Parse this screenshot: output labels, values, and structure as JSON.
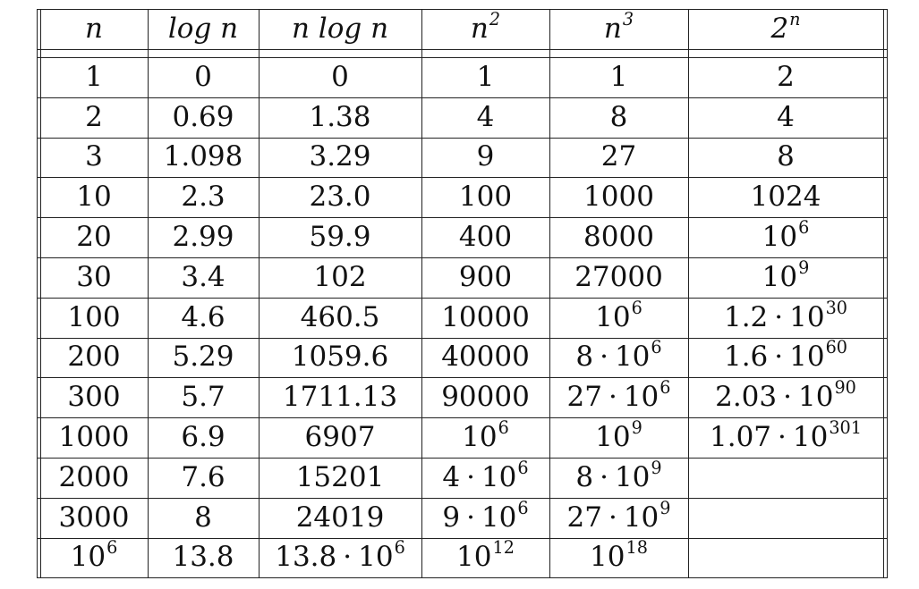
{
  "table": {
    "headers": [
      {
        "base": "n",
        "sup": ""
      },
      {
        "base": "log n",
        "sup": ""
      },
      {
        "base": "n log n",
        "sup": ""
      },
      {
        "base": "n",
        "sup": "2"
      },
      {
        "base": "n",
        "sup": "3"
      },
      {
        "base": "2",
        "sup": "n"
      }
    ],
    "rows": [
      [
        {
          "base": "1"
        },
        {
          "base": "0"
        },
        {
          "base": "0"
        },
        {
          "base": "1"
        },
        {
          "base": "1"
        },
        {
          "base": "2"
        }
      ],
      [
        {
          "base": "2"
        },
        {
          "base": "0.69"
        },
        {
          "base": "1.38"
        },
        {
          "base": "4"
        },
        {
          "base": "8"
        },
        {
          "base": "4"
        }
      ],
      [
        {
          "base": "3"
        },
        {
          "base": "1.098"
        },
        {
          "base": "3.29"
        },
        {
          "base": "9"
        },
        {
          "base": "27"
        },
        {
          "base": "8"
        }
      ],
      [
        {
          "base": "10"
        },
        {
          "base": "2.3"
        },
        {
          "base": "23.0"
        },
        {
          "base": "100"
        },
        {
          "base": "1000"
        },
        {
          "base": "1024"
        }
      ],
      [
        {
          "base": "20"
        },
        {
          "base": "2.99"
        },
        {
          "base": "59.9"
        },
        {
          "base": "400"
        },
        {
          "base": "8000"
        },
        {
          "base": "10",
          "sup": "6"
        }
      ],
      [
        {
          "base": "30"
        },
        {
          "base": "3.4"
        },
        {
          "base": "102"
        },
        {
          "base": "900"
        },
        {
          "base": "27000"
        },
        {
          "base": "10",
          "sup": "9"
        }
      ],
      [
        {
          "base": "100"
        },
        {
          "base": "4.6"
        },
        {
          "base": "460.5"
        },
        {
          "base": "10000"
        },
        {
          "base": "10",
          "sup": "6"
        },
        {
          "coef": "1.2",
          "base": "10",
          "sup": "30"
        }
      ],
      [
        {
          "base": "200"
        },
        {
          "base": "5.29"
        },
        {
          "base": "1059.6"
        },
        {
          "base": "40000"
        },
        {
          "coef": "8",
          "base": "10",
          "sup": "6"
        },
        {
          "coef": "1.6",
          "base": "10",
          "sup": "60"
        }
      ],
      [
        {
          "base": "300"
        },
        {
          "base": "5.7"
        },
        {
          "base": "1711.13"
        },
        {
          "base": "90000"
        },
        {
          "coef": "27",
          "base": "10",
          "sup": "6"
        },
        {
          "coef": "2.03",
          "base": "10",
          "sup": "90"
        }
      ],
      [
        {
          "base": "1000"
        },
        {
          "base": "6.9"
        },
        {
          "base": "6907"
        },
        {
          "base": "10",
          "sup": "6"
        },
        {
          "base": "10",
          "sup": "9"
        },
        {
          "coef": "1.07",
          "base": "10",
          "sup": "301"
        }
      ],
      [
        {
          "base": "2000"
        },
        {
          "base": "7.6"
        },
        {
          "base": "15201"
        },
        {
          "coef": "4",
          "base": "10",
          "sup": "6"
        },
        {
          "coef": "8",
          "base": "10",
          "sup": "9"
        },
        {
          "base": ""
        }
      ],
      [
        {
          "base": "3000"
        },
        {
          "base": "8"
        },
        {
          "base": "24019"
        },
        {
          "coef": "9",
          "base": "10",
          "sup": "6"
        },
        {
          "coef": "27",
          "base": "10",
          "sup": "9"
        },
        {
          "base": ""
        }
      ],
      [
        {
          "base": "10",
          "sup": "6"
        },
        {
          "base": "13.8"
        },
        {
          "coef": "13.8",
          "base": "10",
          "sup": "6"
        },
        {
          "base": "10",
          "sup": "12"
        },
        {
          "base": "10",
          "sup": "18"
        },
        {
          "base": ""
        }
      ]
    ]
  }
}
